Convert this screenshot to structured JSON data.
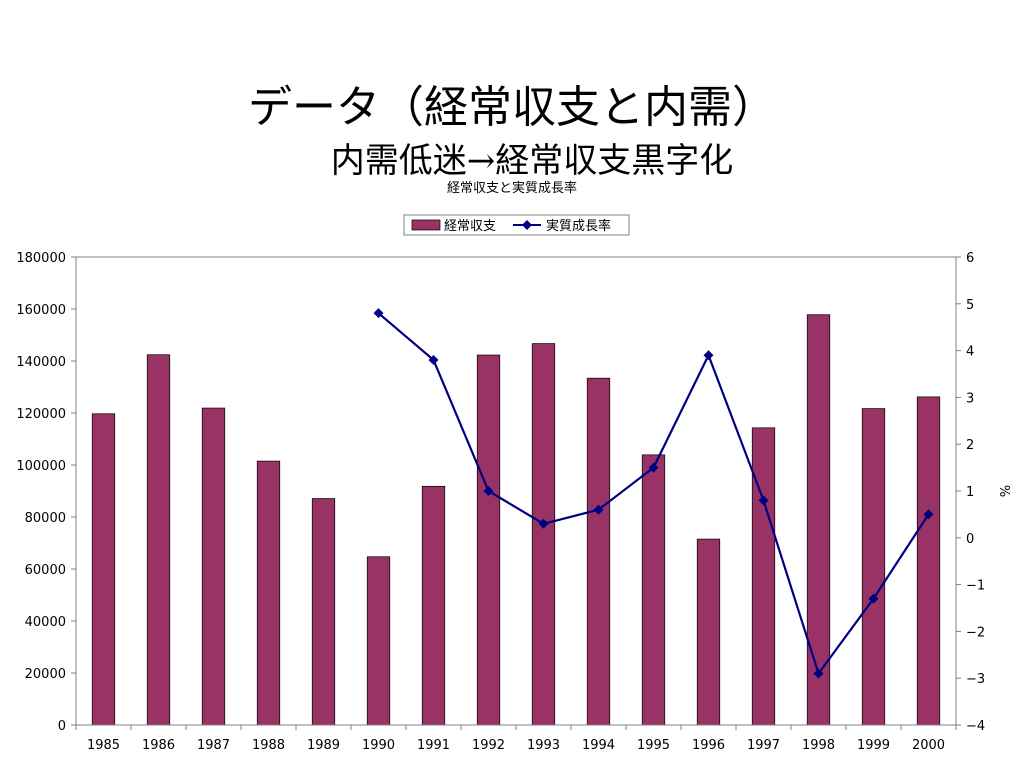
{
  "slide": {
    "title": "データ（経常収支と内需）",
    "subtitle": "内需低迷→経常収支黒字化"
  },
  "chart_data": {
    "type": "bar",
    "title": "経常収支と実質成長率",
    "categories": [
      "1985",
      "1986",
      "1987",
      "1988",
      "1989",
      "1990",
      "1991",
      "1992",
      "1993",
      "1994",
      "1995",
      "1996",
      "1997",
      "1998",
      "1999",
      "2000"
    ],
    "series": [
      {
        "name": "経常収支",
        "type": "bar",
        "axis": "left",
        "color": "#993366",
        "values": [
          119700,
          142400,
          121900,
          101500,
          87100,
          64700,
          91800,
          142300,
          146700,
          133400,
          103900,
          71500,
          114300,
          157800,
          121700,
          126200
        ]
      },
      {
        "name": "実質成長率",
        "type": "line",
        "axis": "right",
        "color": "#000080",
        "values": [
          null,
          null,
          null,
          null,
          null,
          4.8,
          3.8,
          1.0,
          0.3,
          0.6,
          1.5,
          3.9,
          0.8,
          -2.9,
          -1.3,
          0.5
        ]
      }
    ],
    "y_left": {
      "min": 0,
      "max": 180000,
      "ticks": [
        "0",
        "20000",
        "40000",
        "60000",
        "80000",
        "100000",
        "120000",
        "140000",
        "160000",
        "180000"
      ]
    },
    "y_right": {
      "min": -4,
      "max": 6,
      "label": "%",
      "ticks": [
        "−4",
        "−3",
        "−2",
        "−1",
        "0",
        "1",
        "2",
        "3",
        "4",
        "5",
        "6"
      ]
    },
    "legend": {
      "placement": "top-center"
    },
    "grid": false
  }
}
